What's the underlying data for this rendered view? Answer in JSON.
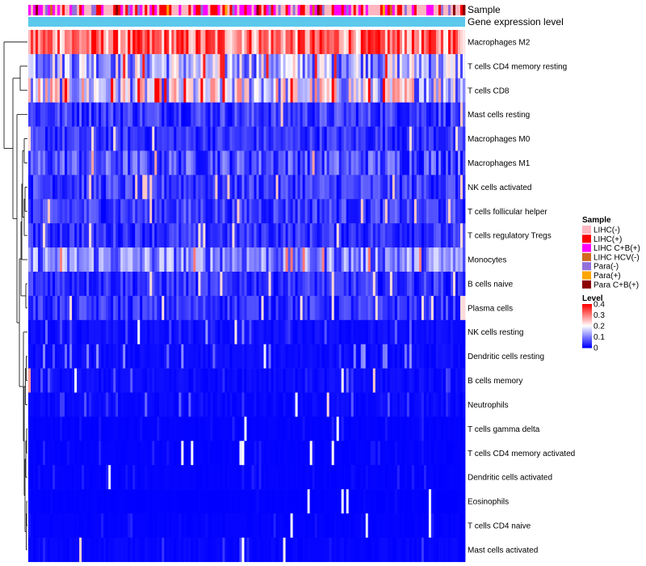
{
  "chart_data": {
    "type": "heatmap",
    "title": "",
    "rows": [
      {
        "label": "Macrophages M2",
        "mean": 0.3
      },
      {
        "label": "T cells CD4 memory resting",
        "mean": 0.14
      },
      {
        "label": "T cells CD8",
        "mean": 0.17
      },
      {
        "label": "Mast cells resting",
        "mean": 0.06
      },
      {
        "label": "Macrophages M0",
        "mean": 0.05
      },
      {
        "label": "Macrophages M1",
        "mean": 0.08
      },
      {
        "label": "NK cells activated",
        "mean": 0.06
      },
      {
        "label": "T cells follicular helper",
        "mean": 0.06
      },
      {
        "label": "T cells regulatory  Tregs",
        "mean": 0.05
      },
      {
        "label": "Monocytes",
        "mean": 0.1
      },
      {
        "label": "B cells naive",
        "mean": 0.05
      },
      {
        "label": "Plasma cells",
        "mean": 0.05
      },
      {
        "label": "NK cells resting",
        "mean": 0.02
      },
      {
        "label": "Dendritic cells resting",
        "mean": 0.02
      },
      {
        "label": "B cells memory",
        "mean": 0.02
      },
      {
        "label": "Neutrophils",
        "mean": 0.015
      },
      {
        "label": "T cells gamma delta",
        "mean": 0.005
      },
      {
        "label": "T cells CD4 memory activated",
        "mean": 0.005
      },
      {
        "label": "Dendritic cells activated",
        "mean": 0.005
      },
      {
        "label": "Eosinophils",
        "mean": 0.002
      },
      {
        "label": "T cells CD4 naive",
        "mean": 0.005
      },
      {
        "label": "Mast cells activated",
        "mean": 0.01
      }
    ],
    "column_count": 180,
    "annotations": [
      {
        "name": "Sample"
      },
      {
        "name": "Gene expression level"
      }
    ],
    "legends": {
      "sample": {
        "title": "Sample",
        "entries": [
          {
            "label": "LIHC(-)",
            "color": "#ffb6c1"
          },
          {
            "label": "LIHC(+)",
            "color": "#ff0000"
          },
          {
            "label": "LIHC C+B(+)",
            "color": "#ff00ff"
          },
          {
            "label": "LIHC HCV(-)",
            "color": "#d2691e"
          },
          {
            "label": "Para(-)",
            "color": "#9370db"
          },
          {
            "label": "Para(+)",
            "color": "#ffa500"
          },
          {
            "label": "Para C+B(+)",
            "color": "#8b0000"
          }
        ]
      },
      "level": {
        "title": "Level",
        "ticks": [
          "0.4",
          "0.3",
          "0.2",
          "0.1",
          "0"
        ],
        "range": [
          0,
          0.4
        ],
        "colors": {
          "low": "#0000ff",
          "mid": "#ffffff",
          "high": "#ff0000"
        }
      }
    },
    "expression_bar_color": "#5bc8ec"
  }
}
